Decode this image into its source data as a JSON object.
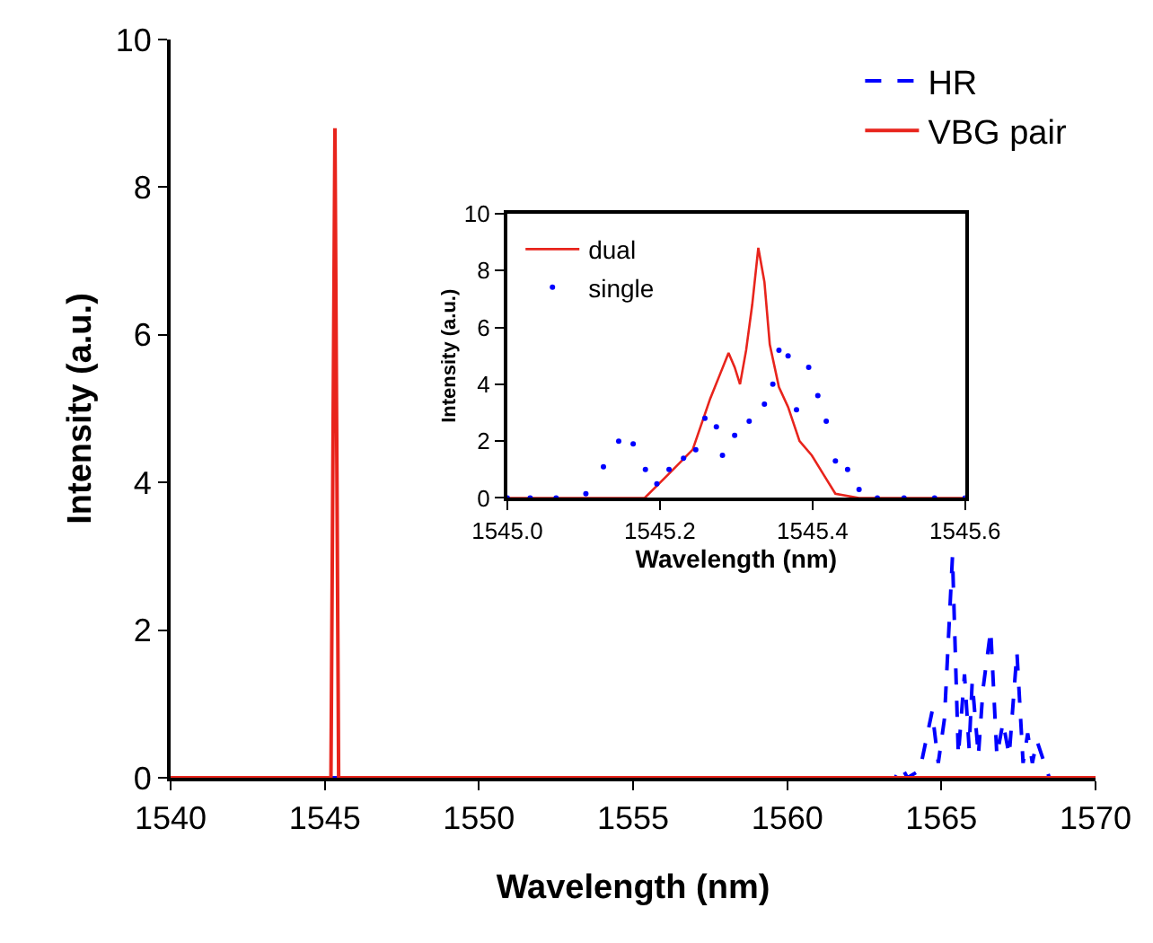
{
  "chart_data": [
    {
      "type": "line",
      "xlabel": "Wavelength (nm)",
      "ylabel": "Intensity (a.u.)",
      "xlim": [
        1540,
        1570
      ],
      "xticks": [
        1540,
        1545,
        1550,
        1555,
        1560,
        1565,
        1570
      ],
      "ylim": [
        0,
        10
      ],
      "yticks": [
        0,
        2,
        4,
        6,
        8,
        10
      ],
      "legend": "top right",
      "series": [
        {
          "name": "HR",
          "color": "#0000ff",
          "line_style": "dashed",
          "x": [
            1540,
            1563.5,
            1563.7,
            1563.9,
            1564.3,
            1564.5,
            1564.7,
            1564.9,
            1565.1,
            1565.36,
            1565.55,
            1565.75,
            1565.9,
            1566.0,
            1566.2,
            1566.35,
            1566.6,
            1566.8,
            1567.0,
            1567.2,
            1567.45,
            1567.65,
            1567.8,
            1567.95,
            1568.1,
            1568.5,
            1570
          ],
          "values": [
            0,
            0,
            0.15,
            0,
            0.1,
            0.5,
            0.9,
            0.2,
            0.8,
            3.0,
            0.3,
            1.4,
            0.4,
            1.3,
            0.3,
            1.2,
            2.0,
            0.3,
            0.75,
            0.3,
            1.7,
            0.2,
            0.6,
            0.2,
            0.5,
            0,
            0
          ]
        },
        {
          "name": "VBG pair",
          "color": "#e8241c",
          "line_style": "solid",
          "x": [
            1540,
            1545.2,
            1545.33,
            1545.45,
            1570
          ],
          "values": [
            0,
            0,
            8.8,
            0,
            0
          ]
        }
      ]
    },
    {
      "type": "line",
      "xlabel": "Wavelength (nm)",
      "ylabel": "Intensity (a.u.)",
      "xlim": [
        1545.0,
        1545.6
      ],
      "xticks": [
        {
          "value": 1545.0,
          "label": "1545.0"
        },
        {
          "value": 1545.2,
          "label": "1545.2"
        },
        {
          "value": 1545.4,
          "label": "1545.4"
        },
        {
          "value": 1545.6,
          "label": "1545.6"
        }
      ],
      "ylim": [
        0,
        10
      ],
      "yticks": [
        0,
        2,
        4,
        6,
        8,
        10
      ],
      "legend": "top left",
      "series": [
        {
          "name": "dual",
          "color": "#e8241c",
          "line_style": "solid",
          "x": [
            1545.0,
            1545.18,
            1545.21,
            1545.243,
            1545.266,
            1545.278,
            1545.29,
            1545.298,
            1545.305,
            1545.313,
            1545.321,
            1545.329,
            1545.337,
            1545.344,
            1545.356,
            1545.368,
            1545.383,
            1545.399,
            1545.415,
            1545.43,
            1545.461,
            1545.6
          ],
          "values": [
            0,
            0,
            0.8,
            1.7,
            3.5,
            4.3,
            5.1,
            4.6,
            4.0,
            5.2,
            6.8,
            8.8,
            7.6,
            5.4,
            3.9,
            3.2,
            2.0,
            1.5,
            0.8,
            0.15,
            0,
            0
          ]
        },
        {
          "name": "single",
          "color": "#0000ff",
          "type": "scatter",
          "marker": "circle",
          "x": [
            1545.0,
            1545.03,
            1545.064,
            1545.103,
            1545.126,
            1545.146,
            1545.165,
            1545.181,
            1545.196,
            1545.212,
            1545.231,
            1545.247,
            1545.259,
            1545.274,
            1545.282,
            1545.298,
            1545.317,
            1545.337,
            1545.348,
            1545.356,
            1545.368,
            1545.379,
            1545.395,
            1545.407,
            1545.418,
            1545.43,
            1545.446,
            1545.461,
            1545.485,
            1545.52,
            1545.56,
            1545.6
          ],
          "values": [
            0,
            0,
            0,
            0.15,
            1.1,
            2.0,
            1.9,
            1.0,
            0.5,
            1.0,
            1.4,
            1.7,
            2.8,
            2.5,
            1.5,
            2.2,
            2.7,
            3.3,
            4.0,
            5.2,
            5.0,
            3.1,
            4.6,
            3.6,
            2.7,
            1.3,
            1.0,
            0.3,
            0,
            0,
            0,
            0
          ]
        }
      ]
    }
  ]
}
